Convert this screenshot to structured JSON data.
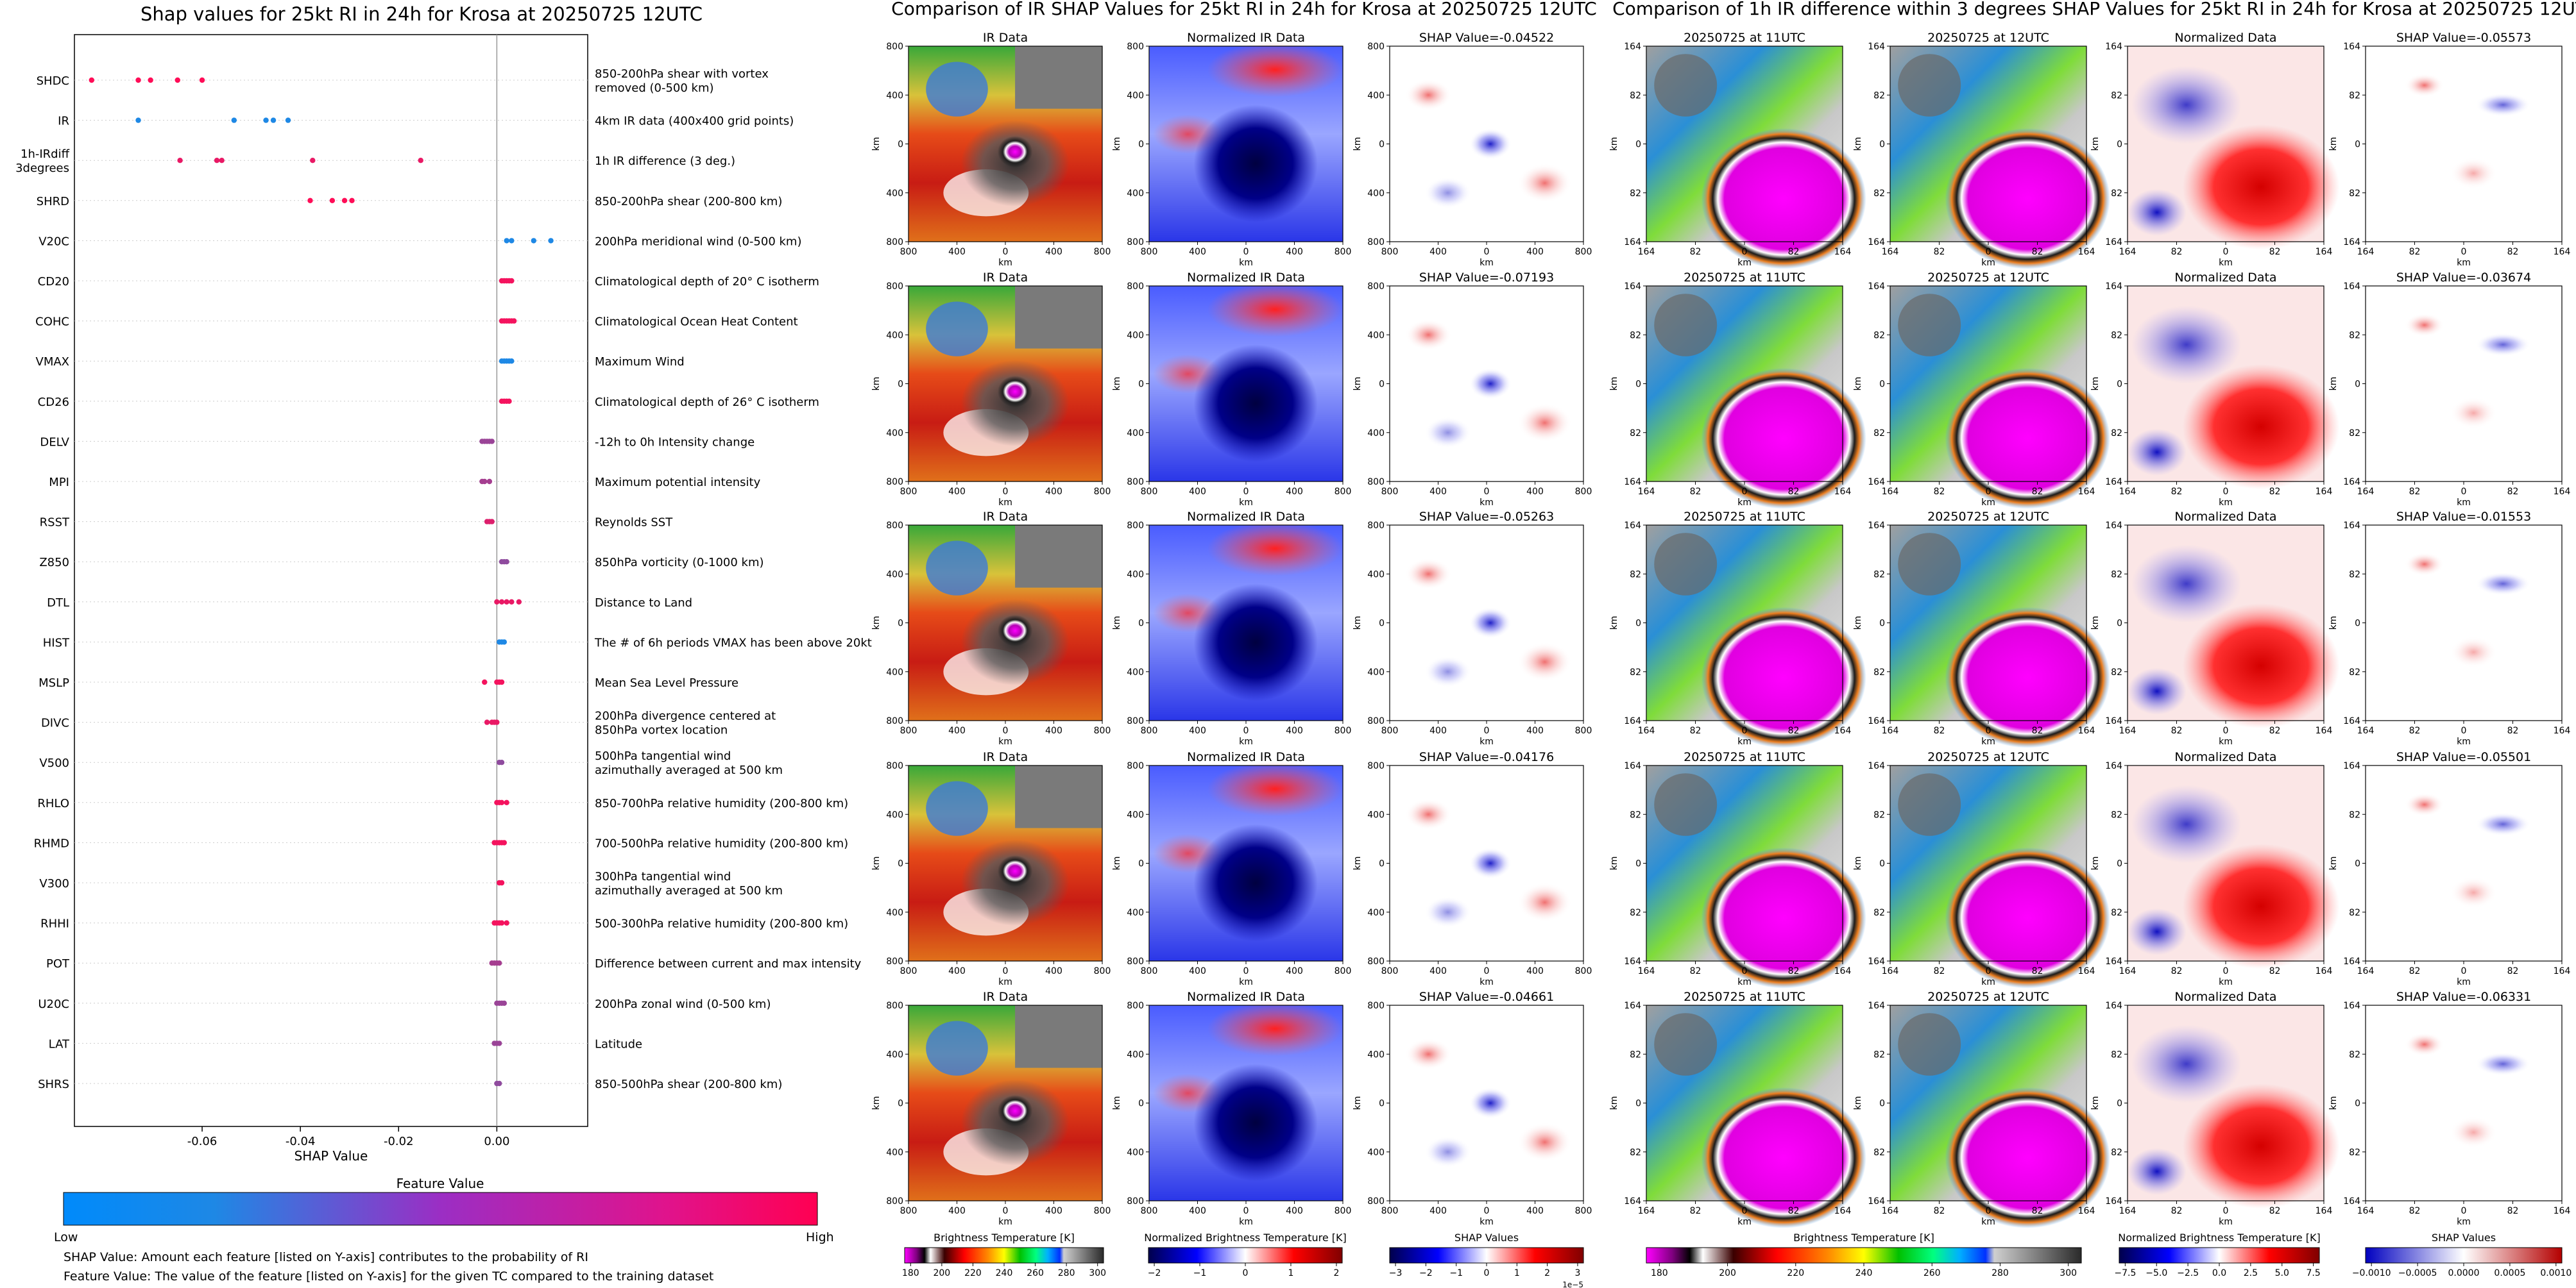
{
  "summary_plot": {
    "title": "Shap values for 25kt RI in 24h for Krosa at 20250725 12UTC",
    "xlabel": "SHAP Value",
    "x_ticks": [
      "-0.06",
      "-0.04",
      "-0.02",
      "0.00"
    ],
    "colorbar_title": "Feature Value",
    "colorbar_low": "Low",
    "colorbar_high": "High",
    "low_color": "#1e88e5",
    "high_color": "#ff0d57",
    "footnote_1": "SHAP Value: Amount each feature [listed on Y-axis] contributes to the probability of RI",
    "footnote_2": "Feature Value: The value of the feature [listed on Y-axis] for the given TC compared to the training dataset"
  },
  "chart_data": [
    {
      "type": "scatter",
      "title": "Shap values for 25kt RI in 24h for Krosa at 20250725 12UTC",
      "xlabel": "SHAP Value",
      "xlim": [
        -0.086,
        0.0185
      ],
      "grid": false,
      "features": [
        {
          "code": "SHDC",
          "desc": "850-200hPa shear with vortex removed (0-500 km)",
          "shap": [
            -0.0825,
            -0.073,
            -0.0705,
            -0.065,
            -0.06
          ],
          "value": 1.0
        },
        {
          "code": "IR",
          "desc": "4km IR data (400x400 grid points)",
          "shap": [
            -0.073,
            -0.0535,
            -0.047,
            -0.0455,
            -0.0425
          ],
          "value": 0.0
        },
        {
          "code": "1h-IRdiff 3degrees",
          "desc": "1h IR difference (3 deg.)",
          "shap": [
            -0.0645,
            -0.057,
            -0.056,
            -0.0375,
            -0.0155
          ],
          "value": 0.9
        },
        {
          "code": "SHRD",
          "desc": "850-200hPa shear (200-800 km)",
          "shap": [
            -0.038,
            -0.0335,
            -0.031,
            -0.0295
          ],
          "value": 1.0
        },
        {
          "code": "V20C",
          "desc": "200hPa meridional wind (0-500 km)",
          "shap": [
            0.002,
            0.003,
            0.0075,
            0.011
          ],
          "value": 0.0
        },
        {
          "code": "CD20",
          "desc": "Climatological depth of 20° C isotherm",
          "shap": [
            0.001,
            0.0015,
            0.002,
            0.0025,
            0.003
          ],
          "value": 0.95
        },
        {
          "code": "COHC",
          "desc": "Climatological Ocean Heat Content",
          "shap": [
            0.001,
            0.0015,
            0.002,
            0.0025,
            0.003,
            0.0035
          ],
          "value": 0.95
        },
        {
          "code": "VMAX",
          "desc": "Maximum Wind",
          "shap": [
            0.001,
            0.0015,
            0.002,
            0.0025,
            0.003
          ],
          "value": 0.0
        },
        {
          "code": "CD26",
          "desc": "Climatological depth of 26° C isotherm",
          "shap": [
            0.001,
            0.0015,
            0.002,
            0.0025
          ],
          "value": 0.95
        },
        {
          "code": "DELV",
          "desc": "-12h to 0h Intensity change",
          "shap": [
            -0.003,
            -0.0025,
            -0.002,
            -0.0015,
            -0.001
          ],
          "value": 0.55
        },
        {
          "code": "MPI",
          "desc": "Maximum potential intensity",
          "shap": [
            -0.003,
            -0.0025,
            -0.0015
          ],
          "value": 0.6
        },
        {
          "code": "RSST",
          "desc": "Reynolds SST",
          "shap": [
            -0.002,
            -0.0015,
            -0.001
          ],
          "value": 0.85
        },
        {
          "code": "Z850",
          "desc": "850hPa vorticity (0-1000 km)",
          "shap": [
            0.001,
            0.0015,
            0.002
          ],
          "value": 0.5
        },
        {
          "code": "DTL",
          "desc": "Distance to Land",
          "shap": [
            0.0,
            0.001,
            0.002,
            0.003,
            0.0045
          ],
          "value": 0.9
        },
        {
          "code": "HIST",
          "desc": "The # of 6h periods VMAX has been above 20kt",
          "shap": [
            0.0005,
            0.001,
            0.0015
          ],
          "value": 0.0
        },
        {
          "code": "MSLP",
          "desc": "Mean Sea Level Pressure",
          "shap": [
            -0.0025,
            0.0,
            0.0005,
            0.001
          ],
          "value": 0.95
        },
        {
          "code": "DIVC",
          "desc": "200hPa divergence centered at 850hPa vortex location",
          "shap": [
            -0.002,
            -0.001,
            -0.0005,
            0.0
          ],
          "value": 0.9
        },
        {
          "code": "V500",
          "desc": "500hPa tangential wind azimuthally averaged at 500 km",
          "shap": [
            0.0005,
            0.001
          ],
          "value": 0.5
        },
        {
          "code": "RHLO",
          "desc": "850-700hPa relative humidity (200-800 km)",
          "shap": [
            0.0,
            0.0005,
            0.001,
            0.002
          ],
          "value": 0.95
        },
        {
          "code": "RHMD",
          "desc": "700-500hPa relative humidity (200-800 km)",
          "shap": [
            -0.0005,
            0.0,
            0.0005,
            0.001,
            0.0015
          ],
          "value": 0.95
        },
        {
          "code": "V300",
          "desc": "300hPa tangential wind azimuthally averaged at 500 km",
          "shap": [
            0.0005,
            0.001
          ],
          "value": 0.95
        },
        {
          "code": "RHHI",
          "desc": "500-300hPa relative humidity (200-800 km)",
          "shap": [
            -0.0005,
            0.0,
            0.0005,
            0.001,
            0.002
          ],
          "value": 0.95
        },
        {
          "code": "POT",
          "desc": "Difference between current and max intensity",
          "shap": [
            -0.001,
            -0.0005,
            0.0,
            0.0005
          ],
          "value": 0.6
        },
        {
          "code": "U20C",
          "desc": "200hPa zonal wind (0-500 km)",
          "shap": [
            0.0,
            0.0005,
            0.001,
            0.0015
          ],
          "value": 0.55
        },
        {
          "code": "LAT",
          "desc": "Latitude",
          "shap": [
            -0.0005,
            0.0,
            0.0005
          ],
          "value": 0.55
        },
        {
          "code": "SHRS",
          "desc": "850-500hPa shear (200-800 km)",
          "shap": [
            0.0,
            0.0005
          ],
          "value": 0.5
        }
      ]
    },
    {
      "type": "heatmap",
      "title": "Comparison of IR SHAP Values for 25kt RI in 24h for Krosa at 20250725 12UTC",
      "columns": [
        "IR Data",
        "Normalized IR Data"
      ],
      "shap_titles": [
        "SHAP Value=-0.04522",
        "SHAP Value=-0.07193",
        "SHAP Value=-0.05263",
        "SHAP Value=-0.04176",
        "SHAP Value=-0.04661"
      ],
      "axis_label": "km",
      "tick_labels": [
        "800",
        "400",
        "0",
        "400",
        "800"
      ],
      "colorbars": [
        {
          "label": "Brightness Temperature [K]",
          "ticks": [
            "180",
            "200",
            "220",
            "240",
            "260",
            "280",
            "300"
          ]
        },
        {
          "label": "Normalized Brightness Temperature [K]",
          "ticks": [
            "−2",
            "−1",
            "0",
            "1",
            "2"
          ]
        },
        {
          "label": "SHAP Values",
          "ticks": [
            "−3",
            "−2",
            "−1",
            "0",
            "1",
            "2",
            "3"
          ],
          "offset": "1e−5"
        }
      ]
    },
    {
      "type": "heatmap",
      "title": "Comparison of 1h IR difference within 3 degrees SHAP Values for 25kt RI in 24h for Krosa at 20250725 12UTC",
      "columns": [
        "20250725 at 11UTC",
        "20250725 at 12UTC",
        "Normalized Data"
      ],
      "shap_titles": [
        "SHAP Value=-0.05573",
        "SHAP Value=-0.03674",
        "SHAP Value=-0.01553",
        "SHAP Value=-0.05501",
        "SHAP Value=-0.06331"
      ],
      "axis_label": "km",
      "tick_labels": [
        "164",
        "82",
        "0",
        "82",
        "164"
      ],
      "colorbars": [
        {
          "label": "Brightness Temperature [K]",
          "ticks": [
            "180",
            "200",
            "220",
            "240",
            "260",
            "280",
            "300"
          ]
        },
        {
          "label": "Normalized Brightness Temperature [K]",
          "ticks": [
            "−7.5",
            "−5.0",
            "−2.5",
            "0.0",
            "2.5",
            "5.0",
            "7.5"
          ]
        },
        {
          "label": "SHAP Values",
          "ticks": [
            "−0.0010",
            "−0.0005",
            "0.0000",
            "0.0005",
            "0.0010"
          ]
        }
      ]
    }
  ]
}
